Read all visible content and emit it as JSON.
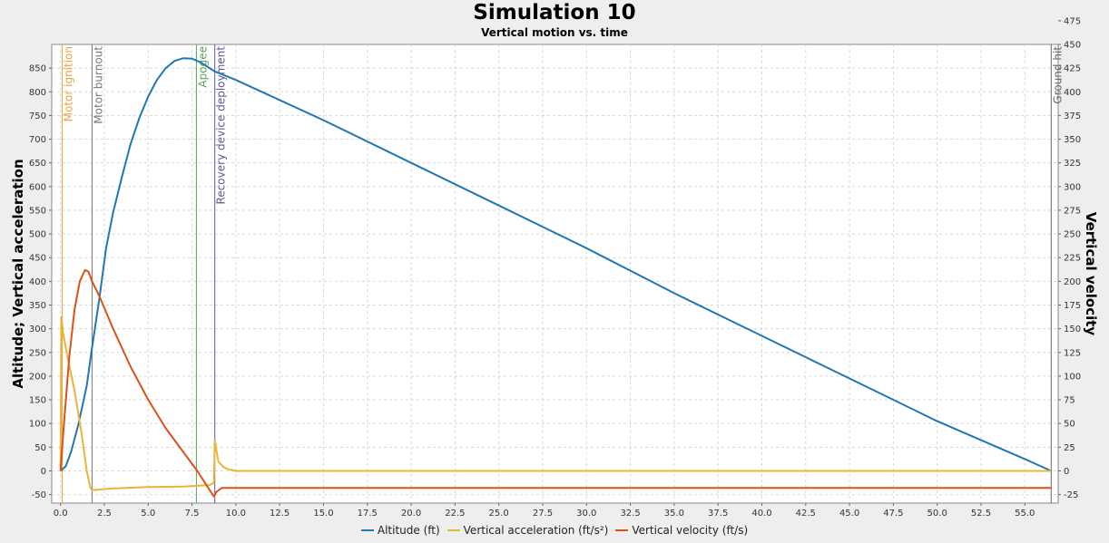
{
  "chart_data": {
    "type": "line",
    "title": "Simulation 10",
    "subtitle": "Vertical motion vs. time",
    "y_left_label": "Altitude; Vertical acceleration",
    "y_right_label": "Vertical velocity",
    "x_ticks": [
      "0.0",
      "2.5",
      "5.0",
      "7.5",
      "10.0",
      "12.5",
      "15.0",
      "17.5",
      "20.0",
      "22.5",
      "25.0",
      "27.5",
      "30.0",
      "32.5",
      "35.0",
      "37.5",
      "40.0",
      "42.5",
      "45.0",
      "47.5",
      "50.0",
      "52.5",
      "55.0"
    ],
    "y_left_ticks": [
      "-50",
      "0",
      "50",
      "100",
      "150",
      "200",
      "250",
      "300",
      "350",
      "400",
      "450",
      "500",
      "550",
      "600",
      "650",
      "700",
      "750",
      "800",
      "850"
    ],
    "y_right_ticks": [
      "-25",
      "0",
      "25",
      "50",
      "75",
      "100",
      "125",
      "150",
      "175",
      "200",
      "225",
      "250",
      "275",
      "300",
      "325",
      "350",
      "375",
      "400",
      "425",
      "450",
      "475"
    ],
    "xlim": [
      -0.5,
      56.9
    ],
    "ylim_left": [
      -68,
      900
    ],
    "ylim_right": [
      -34,
      450
    ],
    "grid": true,
    "legend_position": "bottom",
    "series": [
      {
        "name": "Altitude (ft)",
        "axis": "left",
        "color": "#1f77b4",
        "x": [
          0.0,
          0.3,
          0.6,
          1.0,
          1.5,
          1.8,
          2.2,
          2.6,
          3.0,
          3.5,
          4.0,
          4.5,
          5.0,
          5.5,
          6.0,
          6.5,
          7.0,
          7.5,
          8.0,
          8.8,
          10.0,
          15.0,
          20.0,
          25.0,
          30.0,
          35.0,
          40.0,
          45.0,
          50.0,
          55.0,
          56.5
        ],
        "y": [
          0,
          10,
          40,
          95,
          180,
          260,
          360,
          470,
          545,
          620,
          690,
          745,
          790,
          825,
          850,
          865,
          871,
          870,
          862,
          843,
          825,
          740,
          650,
          560,
          470,
          375,
          285,
          195,
          105,
          25,
          0
        ]
      },
      {
        "name": "Vertical acceleration (ft/s²)",
        "axis": "left",
        "color": "#e8b43a",
        "x": [
          0.0,
          0.05,
          0.15,
          0.4,
          0.8,
          1.2,
          1.5,
          1.7,
          1.8,
          2.0,
          3.0,
          5.0,
          7.0,
          8.5,
          8.75,
          8.8,
          9.0,
          9.3,
          9.6,
          10.0,
          56.5
        ],
        "y": [
          0,
          325,
          290,
          240,
          170,
          80,
          0,
          -35,
          -40,
          -40,
          -37,
          -34,
          -33,
          -30,
          -25,
          65,
          20,
          8,
          3,
          0,
          0
        ]
      },
      {
        "name": "Vertical velocity (ft/s)",
        "axis": "right",
        "color": "#d95319",
        "x": [
          0.0,
          0.2,
          0.5,
          0.8,
          1.1,
          1.4,
          1.6,
          1.8,
          2.2,
          3.0,
          4.0,
          5.0,
          6.0,
          7.0,
          7.8,
          8.5,
          8.75,
          8.9,
          9.2,
          10.0,
          56.5
        ],
        "y": [
          0,
          50,
          120,
          170,
          200,
          212,
          210,
          200,
          185,
          150,
          110,
          75,
          45,
          20,
          0,
          -20,
          -27,
          -22,
          -18,
          -18,
          -18
        ]
      }
    ],
    "events": [
      {
        "label": "Motor ignition",
        "x": 0.1,
        "color": "#e8a040"
      },
      {
        "label": "Motor burnout",
        "x": 1.8,
        "color": "#777777"
      },
      {
        "label": "Apogee",
        "x": 7.75,
        "color": "#5aa05a"
      },
      {
        "label": "Recovery device deployment",
        "x": 8.8,
        "color": "#5a5a9a"
      },
      {
        "label": "Ground hit",
        "x": 56.5,
        "color": "#666666"
      }
    ]
  }
}
